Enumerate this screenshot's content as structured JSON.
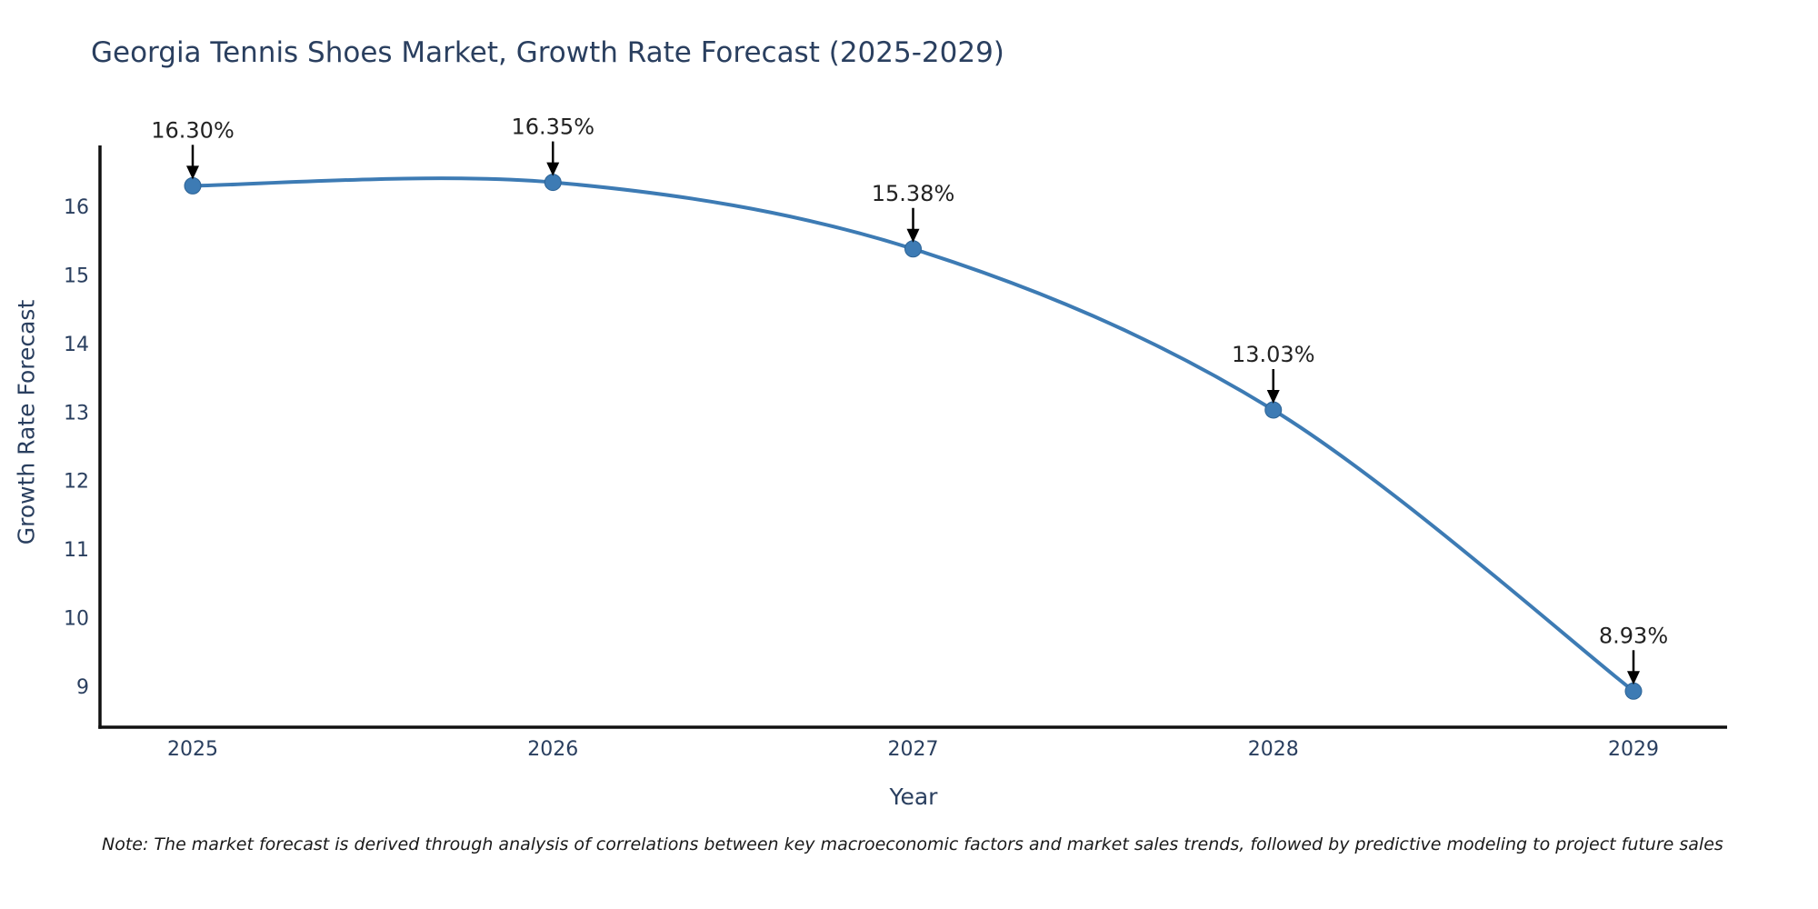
{
  "chart_data": {
    "type": "line",
    "title": "Georgia Tennis Shoes Market, Growth Rate Forecast (2025-2029)",
    "xlabel": "Year",
    "ylabel": "Growth Rate Forecast",
    "categories": [
      "2025",
      "2026",
      "2027",
      "2028",
      "2029"
    ],
    "series": [
      {
        "name": "Growth Rate Forecast",
        "values": [
          16.3,
          16.35,
          15.38,
          13.03,
          8.93
        ],
        "point_labels": [
          "16.30%",
          "16.35%",
          "15.38%",
          "13.03%",
          "8.93%"
        ]
      }
    ],
    "yticks": [
      9,
      10,
      11,
      12,
      13,
      14,
      15,
      16
    ],
    "ylim": [
      8.4,
      16.9
    ],
    "line_shape": "spline",
    "markers": true,
    "grid": false,
    "legend": "none",
    "colors": {
      "line": "#3d7bb4",
      "marker": "#3d7bb4",
      "marker_edge": "#2d6395",
      "axis_line": "#111111",
      "axis_text": "#2a3f5f",
      "title_text": "#2a3f5f",
      "annotation_text": "#222222",
      "arrow": "#000000",
      "background": "#ffffff"
    }
  },
  "note": "Note: The market forecast is derived through analysis of correlations between key macroeconomic factors and market sales trends, followed by predictive modeling to project future sales"
}
